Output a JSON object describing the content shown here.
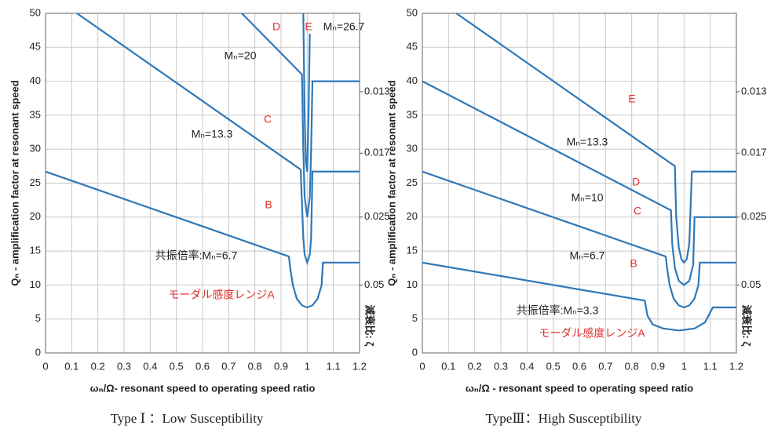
{
  "chart_data": [
    {
      "type": "line",
      "caption": "Type Ⅰ ：Low Susceptibility",
      "xlabel": "ωₙ/Ω- resonant speed to operating speed ratio",
      "ylabel": "Qₙ - amplification factor at resonant speed",
      "y2label": "減衰比: ζ",
      "xlim": [
        0,
        1.2
      ],
      "xticks": [
        0,
        0.1,
        0.2,
        0.3,
        0.4,
        0.5,
        0.6,
        0.7,
        0.8,
        0.9,
        1,
        1.1,
        1.2
      ],
      "ylim": [
        0,
        50
      ],
      "yticks": [
        0,
        5,
        10,
        15,
        20,
        25,
        30,
        35,
        40,
        45,
        50
      ],
      "y2scale": "reciprocal",
      "y2ticks": [
        0.013,
        0.017,
        0.025,
        0.05
      ],
      "grid": true,
      "series": [
        {
          "color": "#2f78b7",
          "x": [
            0,
            0.93,
            0.935,
            0.945,
            0.96,
            0.98,
            1.0,
            1.02,
            1.04,
            1.055,
            1.06,
            1.2
          ],
          "values": [
            26.7,
            14.2,
            12.5,
            10,
            8,
            7,
            6.7,
            7,
            8,
            10,
            13.3,
            13.3
          ]
        },
        {
          "color": "#2f78b7",
          "x": [
            0.12,
            0.975,
            0.98,
            0.985,
            0.99,
            1.0,
            1.01,
            1.015,
            1.02,
            1.2
          ],
          "values": [
            50,
            27,
            22,
            17,
            14.5,
            13.3,
            14.5,
            17,
            26.7,
            26.7
          ]
        },
        {
          "color": "#2f78b7",
          "x": [
            0.75,
            0.98,
            0.985,
            0.99,
            1.0,
            1.01,
            1.015,
            1.02,
            1.2
          ],
          "values": [
            50,
            41,
            30,
            23,
            20,
            23,
            30,
            40,
            40
          ]
        },
        {
          "color": "#2f78b7",
          "x": [
            0.985,
            0.99,
            0.995,
            1.0,
            1.005,
            1.01
          ],
          "values": [
            50,
            35,
            28,
            26.7,
            35,
            47
          ]
        }
      ],
      "annotations": [
        "D",
        "E",
        "Mₙ=26.7",
        "Mₙ=20",
        "C",
        "Mₙ=13.3",
        "B",
        "共振倍率:Mₙ=6.7",
        "モーダル感度レンジA"
      ]
    },
    {
      "type": "line",
      "caption": "TypeⅢ：High Susceptibility",
      "xlabel": "ωₙ/Ω - resonant speed to operating speed ratio",
      "ylabel": "Qₙ - amplification factor at resonant speed",
      "y2label": "減衰比: ζ",
      "xlim": [
        0,
        1.2
      ],
      "xticks": [
        0,
        0.1,
        0.2,
        0.3,
        0.4,
        0.5,
        0.6,
        0.7,
        0.8,
        0.9,
        1,
        1.1,
        1.2
      ],
      "ylim": [
        0,
        50
      ],
      "yticks": [
        0,
        5,
        10,
        15,
        20,
        25,
        30,
        35,
        40,
        45,
        50
      ],
      "y2scale": "reciprocal",
      "y2ticks": [
        0.013,
        0.017,
        0.025,
        0.05
      ],
      "grid": true,
      "series": [
        {
          "color": "#2f78b7",
          "x": [
            0,
            0.85,
            0.86,
            0.88,
            0.92,
            0.98,
            1.04,
            1.08,
            1.11,
            1.2
          ],
          "values": [
            13.3,
            7.7,
            5.5,
            4.2,
            3.6,
            3.3,
            3.6,
            4.5,
            6.7,
            6.7
          ]
        },
        {
          "color": "#2f78b7",
          "x": [
            0,
            0.93,
            0.935,
            0.945,
            0.96,
            0.98,
            1.0,
            1.02,
            1.04,
            1.055,
            1.06,
            1.2
          ],
          "values": [
            26.7,
            14.2,
            12.5,
            10,
            8,
            7,
            6.7,
            7,
            8,
            10,
            13.3,
            13.3
          ]
        },
        {
          "color": "#2f78b7",
          "x": [
            0,
            0.95,
            0.955,
            0.965,
            0.98,
            1.0,
            1.02,
            1.035,
            1.04,
            1.2
          ],
          "values": [
            40,
            21,
            16,
            12.5,
            10.6,
            10,
            10.6,
            13,
            20,
            20
          ]
        },
        {
          "color": "#2f78b7",
          "x": [
            0.13,
            0.965,
            0.97,
            0.98,
            0.99,
            1.0,
            1.01,
            1.02,
            1.03,
            1.2
          ],
          "values": [
            50,
            27.5,
            20,
            15.5,
            13.8,
            13.3,
            13.8,
            16,
            26.7,
            26.7
          ]
        }
      ],
      "annotations": [
        "E",
        "Mₙ=13.3",
        "D",
        "Mₙ=10",
        "C",
        "Mₙ=6.7",
        "B",
        "共振倍率:Mₙ=3.3",
        "モーダル感度レンジA"
      ]
    }
  ]
}
